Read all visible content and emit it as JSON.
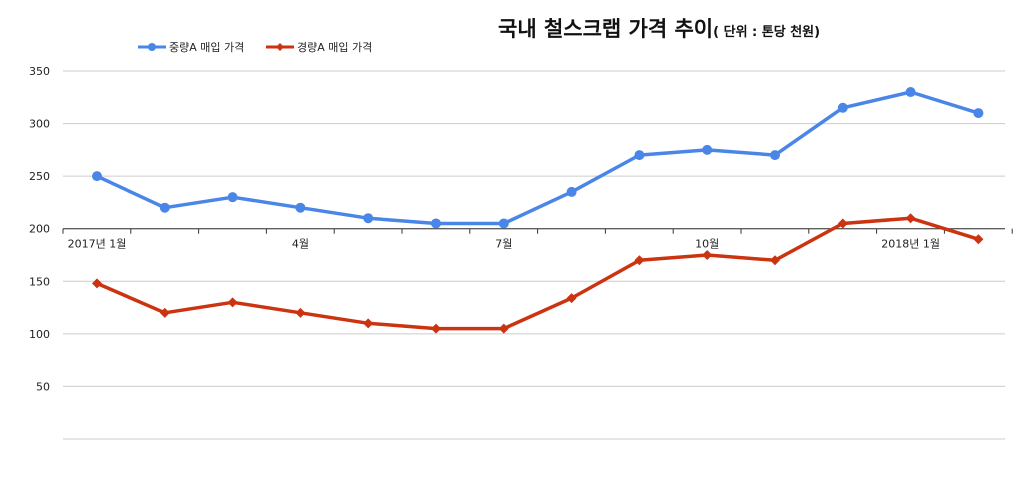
{
  "chart_data": {
    "type": "line",
    "title": "국내 철스크랩 가격 추이",
    "subtitle": "( 단위 : 톤당 천원)",
    "x": [
      "2017-01",
      "2017-02",
      "2017-03",
      "2017-04",
      "2017-05",
      "2017-06",
      "2017-07",
      "2017-08",
      "2017-09",
      "2017-10",
      "2017-11",
      "2017-12",
      "2018-01",
      "2018-02"
    ],
    "x_tick_labels": [
      {
        "at": "2017-01",
        "label": "2017년 1월"
      },
      {
        "at": "2017-04",
        "label": "4월"
      },
      {
        "at": "2017-07",
        "label": "7월"
      },
      {
        "at": "2017-10",
        "label": "10월"
      },
      {
        "at": "2018-01",
        "label": "2018년 1월"
      }
    ],
    "y_ticks": [
      50,
      100,
      150,
      200,
      250,
      300,
      350
    ],
    "ylim": [
      0,
      350
    ],
    "grid": true,
    "legend_position": "top-left",
    "series": [
      {
        "name": "중량A 매입 가격",
        "color": "#4a86e8",
        "marker": "circle",
        "values": [
          250,
          220,
          230,
          220,
          210,
          205,
          205,
          235,
          270,
          275,
          270,
          315,
          330,
          310
        ]
      },
      {
        "name": "경량A 매입 가격",
        "color": "#cc3311",
        "marker": "diamond",
        "values": [
          148,
          120,
          130,
          120,
          110,
          105,
          105,
          134,
          170,
          175,
          170,
          205,
          210,
          190
        ]
      }
    ]
  }
}
